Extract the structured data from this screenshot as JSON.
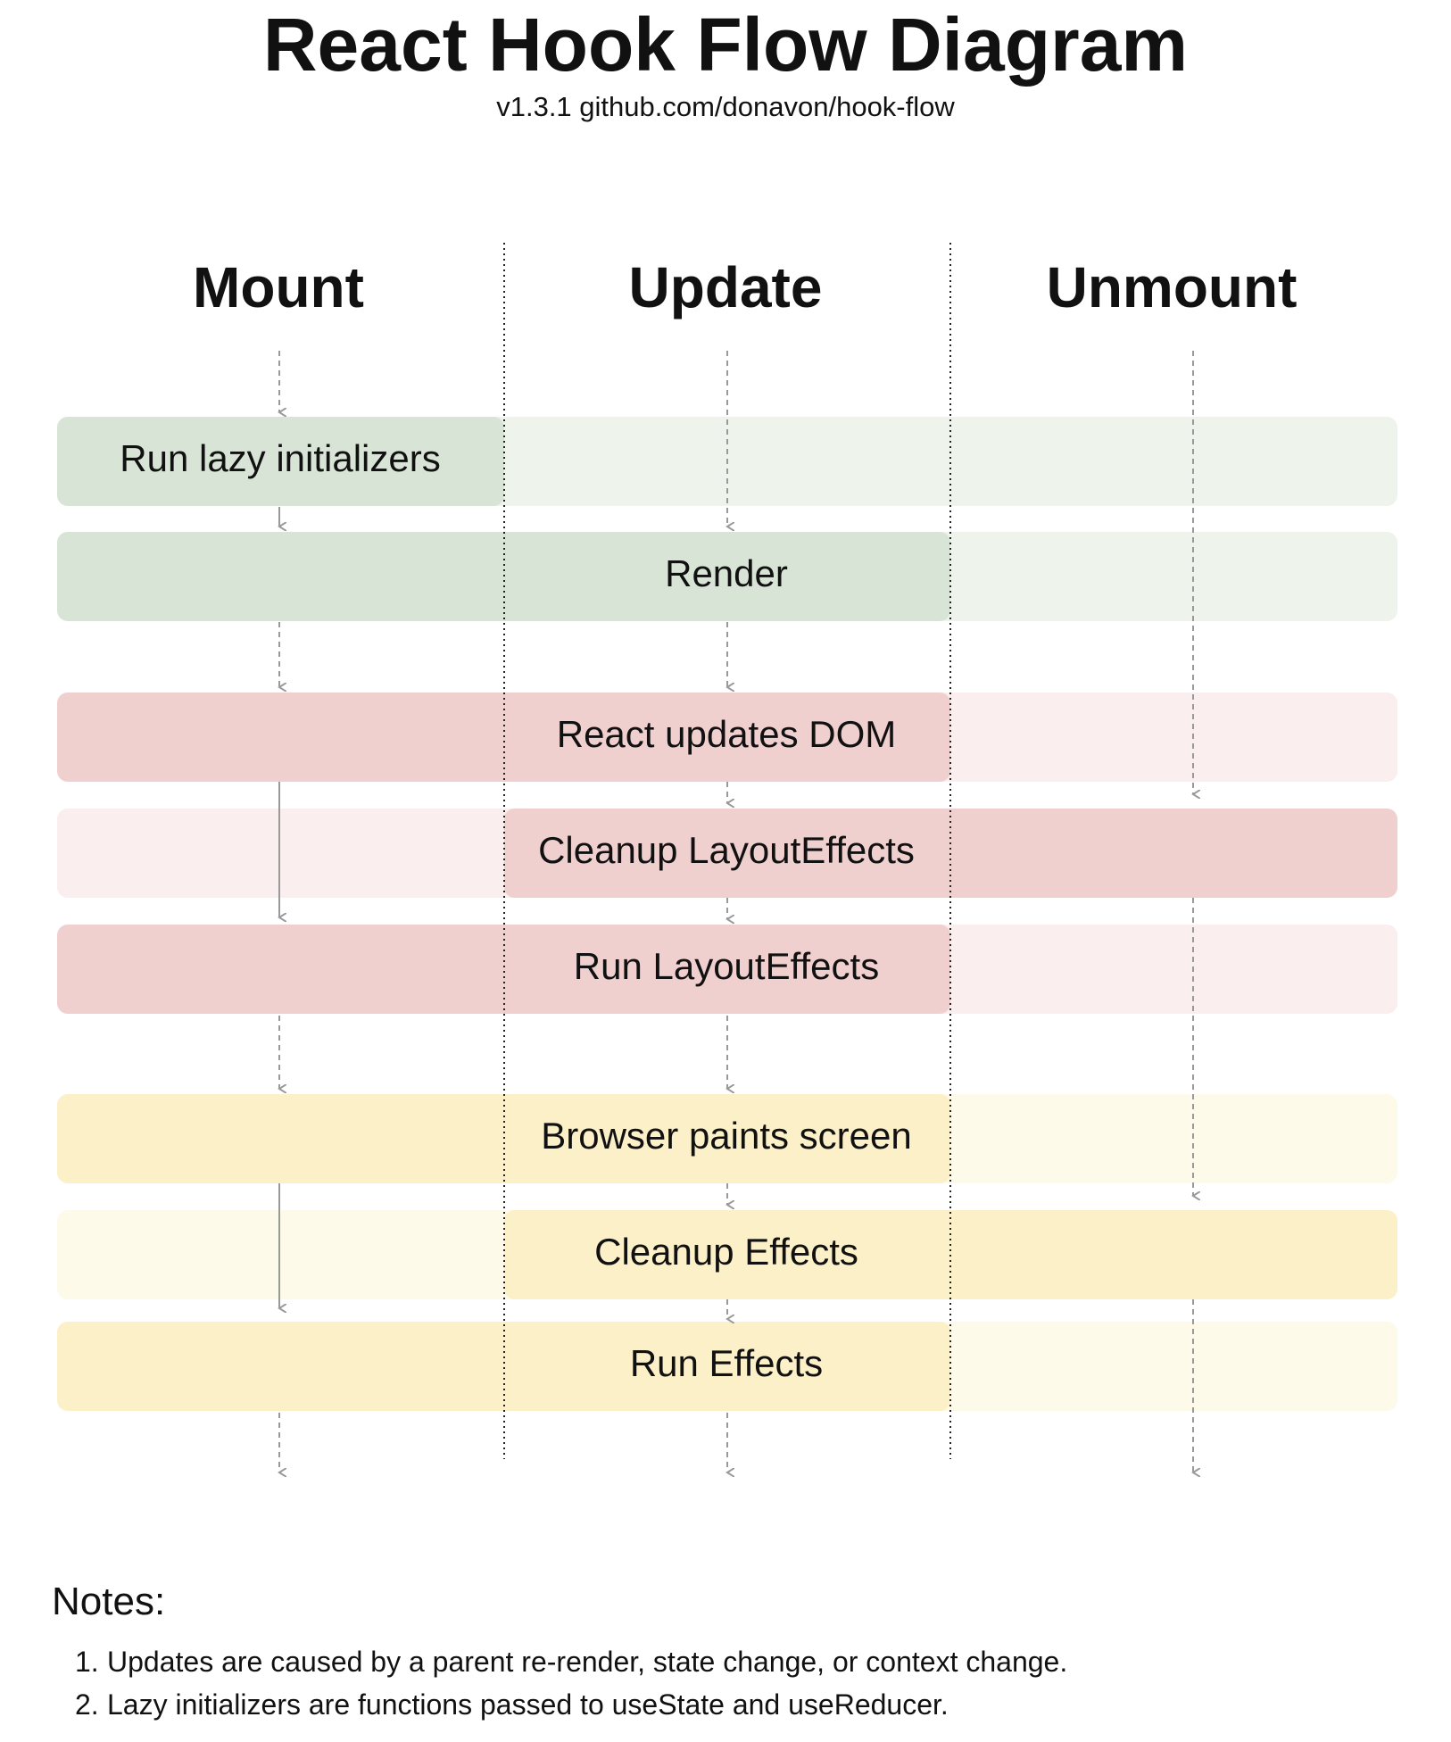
{
  "header": {
    "title": "React Hook Flow Diagram",
    "subtitle": "v1.3.1 github.com/donavon/hook-flow"
  },
  "columns": [
    "Mount",
    "Update",
    "Unmount"
  ],
  "colors": {
    "green_strong": "#d8e5d6",
    "green_light": "#eef4ec",
    "red_strong": "#f0cfcf",
    "red_light": "#faeeee",
    "yellow_strong": "#fcf0c8",
    "yellow_light": "#fefae9",
    "arrow": "#999999",
    "divider": "#222222"
  },
  "rows": [
    {
      "label": "Run lazy initializers",
      "group": "green",
      "active": [
        true,
        false,
        false
      ]
    },
    {
      "label": "Render",
      "group": "green",
      "active": [
        true,
        true,
        false
      ]
    },
    {
      "label": "React updates DOM",
      "group": "red",
      "active": [
        true,
        true,
        false
      ]
    },
    {
      "label": "Cleanup LayoutEffects",
      "group": "red",
      "active": [
        false,
        true,
        true
      ]
    },
    {
      "label": "Run LayoutEffects",
      "group": "red",
      "active": [
        true,
        true,
        false
      ]
    },
    {
      "label": "Browser paints screen",
      "group": "yellow",
      "active": [
        true,
        true,
        false
      ]
    },
    {
      "label": "Cleanup Effects",
      "group": "yellow",
      "active": [
        false,
        true,
        true
      ]
    },
    {
      "label": "Run Effects",
      "group": "yellow",
      "active": [
        true,
        true,
        false
      ]
    }
  ],
  "notes": {
    "title": "Notes:",
    "items": [
      {
        "num": "1.",
        "text": "Updates are caused by a parent re-render, state change, or context change."
      },
      {
        "num": "2.",
        "text": "Lazy initializers are functions passed to useState and useReducer."
      }
    ]
  }
}
